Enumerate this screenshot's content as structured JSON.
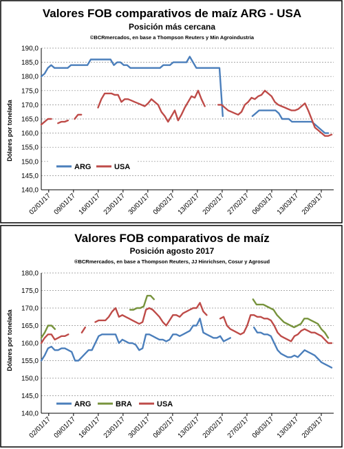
{
  "chart_data": [
    {
      "type": "line",
      "title": "Valores FOB comparativos de maíz ARG - USA",
      "subtitle": "Posición más cercana",
      "source": "©BCRmercados, en base a Thompson Reuters y Min Agroindustria",
      "ylabel": "Dólares por tonelada",
      "ylim": [
        140,
        190
      ],
      "ytick_labels": [
        "140,0",
        "145,0",
        "150,0",
        "155,0",
        "160,0",
        "165,0",
        "170,0",
        "175,0",
        "180,0",
        "185,0",
        "190,0"
      ],
      "x_tick_labels": [
        "02/01/17",
        "09/01/17",
        "16/01/17",
        "23/01/17",
        "30/01/17",
        "06/02/17",
        "13/02/17",
        "20/02/17",
        "27/02/17",
        "06/03/17",
        "13/03/17",
        "20/03/17"
      ],
      "legend": "bottom-left",
      "grid": true,
      "series": [
        {
          "name": "ARG",
          "color": "#4a7ebb",
          "values": [
            180,
            181,
            183,
            184,
            183,
            183,
            183,
            183,
            183,
            184,
            184,
            184,
            184,
            184,
            184,
            186,
            186,
            186,
            186,
            186,
            186,
            186,
            184,
            185,
            185,
            184,
            184,
            183,
            183,
            183,
            183,
            183,
            183,
            183,
            183,
            183,
            183,
            184,
            184,
            184,
            185,
            185,
            185,
            185,
            185,
            187,
            185,
            183,
            183,
            183,
            183,
            183,
            183,
            183,
            183,
            166,
            null,
            null,
            null,
            null,
            null,
            null,
            null,
            null,
            166,
            167,
            168,
            168,
            168,
            168,
            168,
            168,
            167,
            165,
            165,
            165,
            164,
            164,
            164,
            164,
            164,
            164,
            164,
            163,
            162,
            161,
            160,
            160,
            null
          ]
        },
        {
          "name": "USA",
          "color": "#be4b48",
          "values": [
            163,
            164,
            165,
            165,
            null,
            163.5,
            164,
            164,
            164.5,
            null,
            165,
            166.5,
            166.5,
            null,
            null,
            null,
            null,
            169,
            172,
            174,
            174,
            174,
            173.5,
            173.5,
            171,
            172,
            172,
            171.5,
            171,
            170.5,
            170,
            169.5,
            170.5,
            172,
            171,
            170,
            167.5,
            166,
            164,
            166,
            168,
            164.5,
            166.5,
            169,
            171,
            173,
            172.5,
            175,
            172,
            169.5,
            null,
            null,
            null,
            170,
            170,
            169,
            168,
            167.5,
            167,
            166.5,
            167.5,
            170,
            171,
            172.5,
            172,
            173,
            173.5,
            175,
            174,
            173,
            171,
            170,
            169.5,
            169,
            168.5,
            168,
            168,
            168.5,
            169.5,
            170.5,
            168,
            165,
            162,
            161,
            160,
            159,
            159,
            159.5
          ]
        }
      ]
    },
    {
      "type": "line",
      "title": "Valores FOB comparativos de maíz",
      "subtitle": "Posición agosto 2017",
      "source": "®BCRmercados, en base a Thompson Reuters, JJ Hinrichsen, Cosur y Agrosud",
      "ylabel": "Dólares por tonelada",
      "ylim": [
        140,
        180
      ],
      "ytick_labels": [
        "140,0",
        "145,0",
        "150,0",
        "155,0",
        "160,0",
        "165,0",
        "170,0",
        "175,0",
        "180,0"
      ],
      "x_tick_labels": [
        "02/01/17",
        "09/01/17",
        "16/01/17",
        "23/01/17",
        "30/01/17",
        "06/02/17",
        "13/02/17",
        "20/02/17",
        "27/02/17",
        "06/03/17",
        "13/03/17",
        "20/03/17"
      ],
      "legend": "bottom-left",
      "grid": true,
      "series": [
        {
          "name": "ARG",
          "color": "#4a7ebb",
          "values": [
            155,
            156.5,
            158.5,
            159,
            158,
            158,
            158.5,
            158.5,
            158,
            157.5,
            155,
            155,
            156,
            157,
            158,
            158,
            160,
            162,
            162.5,
            162.5,
            162.5,
            162.5,
            162.5,
            160,
            161,
            160.5,
            160,
            160,
            159.5,
            158,
            158.5,
            162.5,
            162.5,
            162,
            161.5,
            161,
            161,
            160.5,
            161,
            162.5,
            162.5,
            162,
            162.5,
            163,
            163.5,
            165,
            165,
            167,
            163,
            162.5,
            162,
            161.5,
            161.5,
            162,
            160.5,
            161,
            161.5,
            null,
            null,
            null,
            null,
            null,
            null,
            164.5,
            163,
            163,
            162.5,
            162.5,
            162,
            160,
            158,
            157,
            156.5,
            156,
            156,
            156.5,
            156,
            157,
            158,
            157.5,
            157,
            156.5,
            155.5,
            154.5,
            154,
            153.5,
            153
          ]
        },
        {
          "name": "BRA",
          "color": "#77933c",
          "values": [
            161.5,
            163,
            165,
            165,
            164,
            null,
            null,
            null,
            null,
            null,
            null,
            null,
            null,
            null,
            null,
            null,
            null,
            null,
            null,
            null,
            null,
            null,
            null,
            null,
            null,
            null,
            169.5,
            169.5,
            170,
            170,
            170.5,
            173.5,
            173.5,
            172.5,
            null,
            null,
            null,
            null,
            null,
            null,
            null,
            null,
            null,
            null,
            null,
            null,
            null,
            null,
            null,
            null,
            null,
            null,
            null,
            null,
            null,
            null,
            null,
            null,
            null,
            null,
            null,
            null,
            172.5,
            171,
            171,
            171,
            170.5,
            170,
            169.5,
            168,
            167,
            166,
            165.5,
            165,
            164.5,
            165,
            165.5,
            167,
            167,
            166.5,
            166,
            165.5,
            164,
            163,
            161.5,
            null
          ]
        },
        {
          "name": "USA",
          "color": "#be4b48",
          "values": [
            160,
            161.5,
            162.5,
            162.5,
            161,
            161.5,
            162,
            162,
            162.5,
            null,
            null,
            null,
            163,
            164.5,
            null,
            null,
            166,
            166.5,
            166.5,
            166.5,
            167.5,
            169,
            170,
            167.5,
            168,
            167.5,
            167,
            166.5,
            166,
            165.5,
            166,
            169.5,
            170,
            169.5,
            168.5,
            167.5,
            166,
            165,
            166.5,
            168,
            168,
            167.5,
            168.5,
            169,
            169.5,
            170,
            170,
            171.5,
            169,
            168,
            null,
            null,
            null,
            167,
            167.5,
            165,
            164,
            163.5,
            163,
            162.5,
            163,
            165,
            168,
            168,
            167.5,
            167.5,
            167,
            167,
            166.5,
            165,
            163,
            162,
            161.5,
            161,
            160.5,
            162,
            162.5,
            163.5,
            164,
            163.5,
            163,
            163,
            162.5,
            162,
            161,
            160,
            160
          ]
        }
      ]
    }
  ]
}
